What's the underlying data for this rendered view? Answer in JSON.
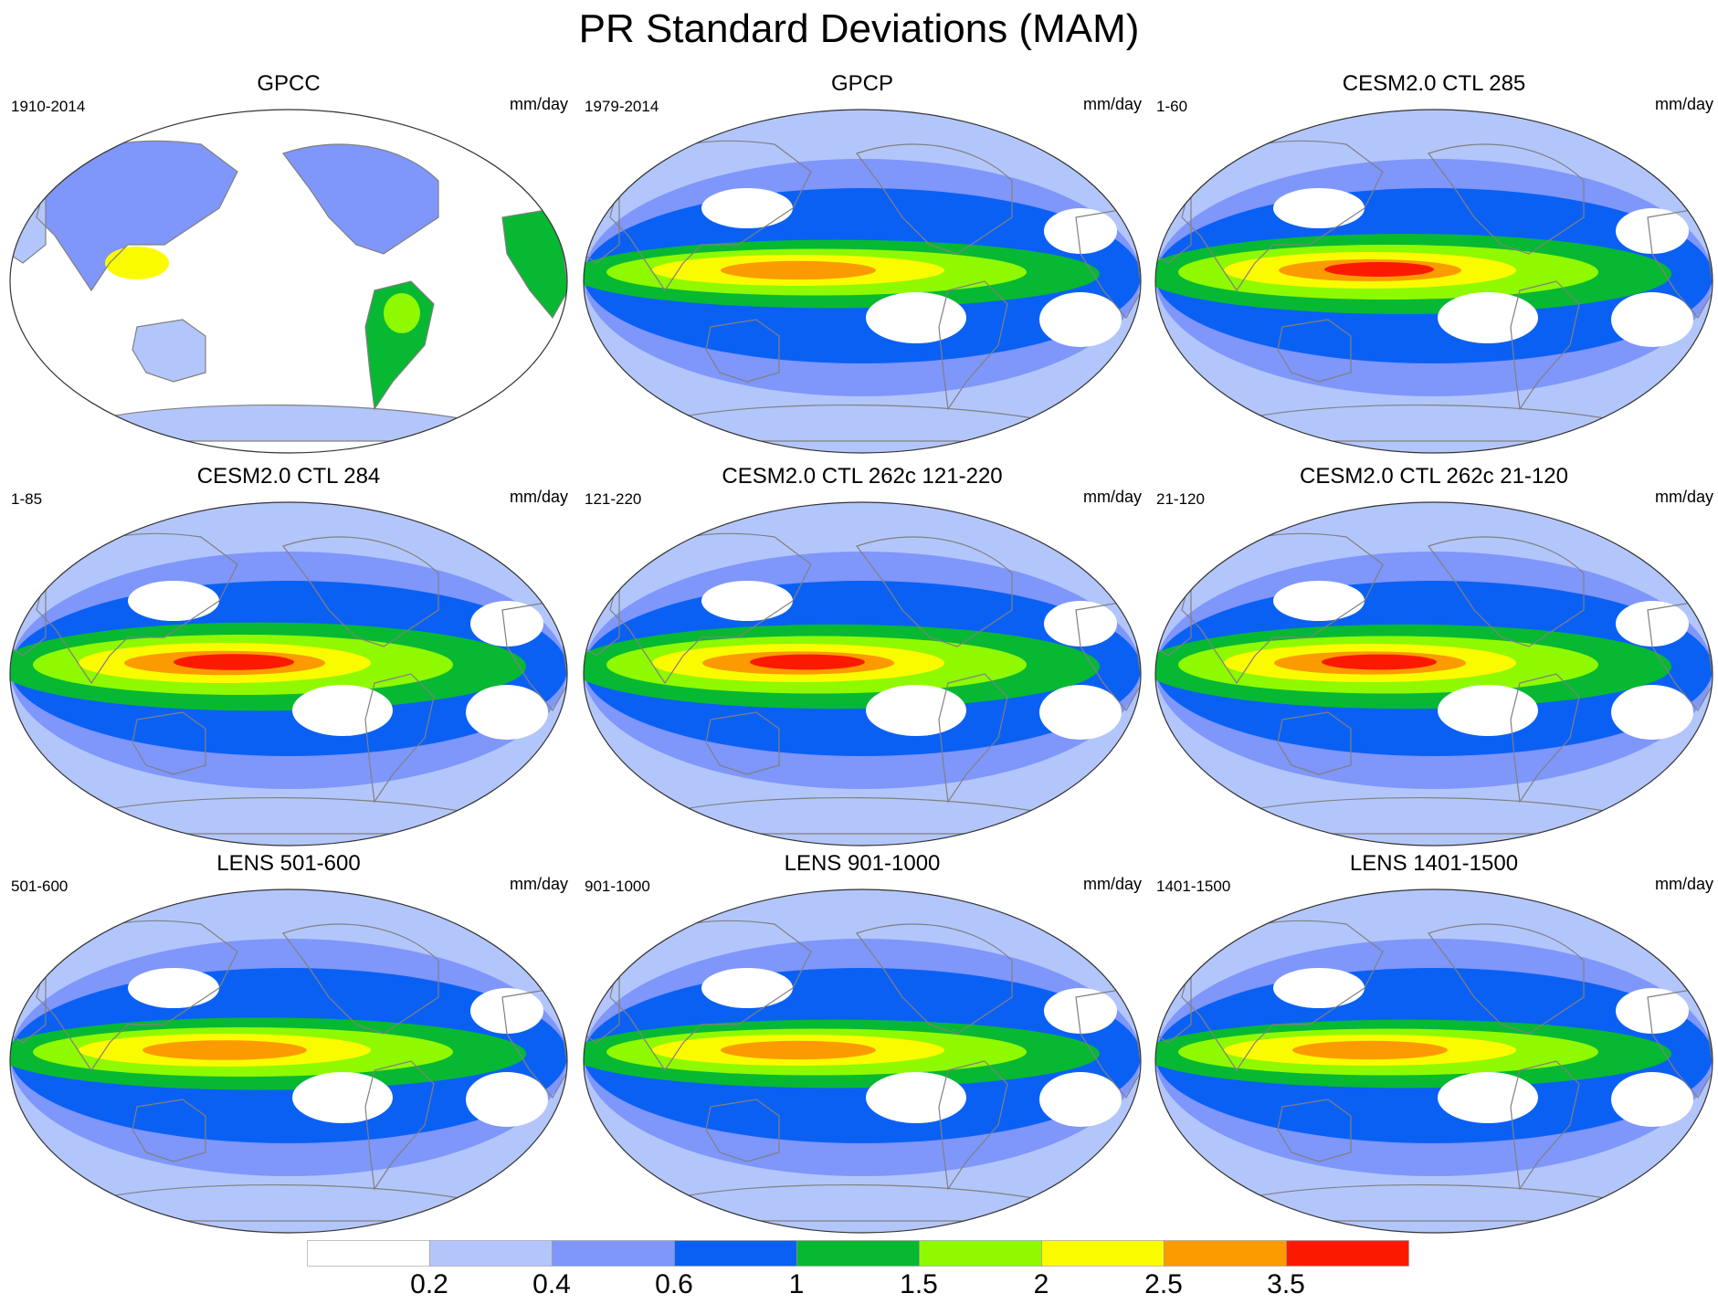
{
  "figure": {
    "title": "PR Standard Deviations (MAM)"
  },
  "palette": {
    "levels": [
      "#ffffff",
      "#b3c6fb",
      "#7f96fb",
      "#0b60f4",
      "#07b833",
      "#8ff900",
      "#fbfb00",
      "#fb9b00",
      "#fb1a00"
    ],
    "land_outline": "#808080",
    "border": "#333333"
  },
  "panels": [
    {
      "title": "GPCC",
      "period": "1910-2014",
      "units": "mm/day",
      "field": "land-only",
      "intensity": 0.85
    },
    {
      "title": "GPCP",
      "period": "1979-2014",
      "units": "mm/day",
      "field": "global",
      "intensity": 0.85
    },
    {
      "title": "CESM2.0 CTL 285",
      "period": "1-60",
      "units": "mm/day",
      "field": "global",
      "intensity": 1.0
    },
    {
      "title": "CESM2.0 CTL 284",
      "period": "1-85",
      "units": "mm/day",
      "field": "global",
      "intensity": 1.1
    },
    {
      "title": "CESM2.0 CTL 262c 121-220",
      "period": "121-220",
      "units": "mm/day",
      "field": "global",
      "intensity": 1.05
    },
    {
      "title": "CESM2.0 CTL 262c 21-120",
      "period": "21-120",
      "units": "mm/day",
      "field": "global",
      "intensity": 1.05
    },
    {
      "title": "LENS 501-600",
      "period": "501-600",
      "units": "mm/day",
      "field": "global",
      "intensity": 0.9
    },
    {
      "title": "LENS 901-1000",
      "period": "901-1000",
      "units": "mm/day",
      "field": "global",
      "intensity": 0.85
    },
    {
      "title": "LENS 1401-1500",
      "period": "1401-1500",
      "units": "mm/day",
      "field": "global",
      "intensity": 0.85
    }
  ],
  "colorbar": {
    "labels": [
      "0.2",
      "0.4",
      "0.6",
      "1",
      "1.5",
      "2",
      "2.5",
      "3.5"
    ]
  }
}
